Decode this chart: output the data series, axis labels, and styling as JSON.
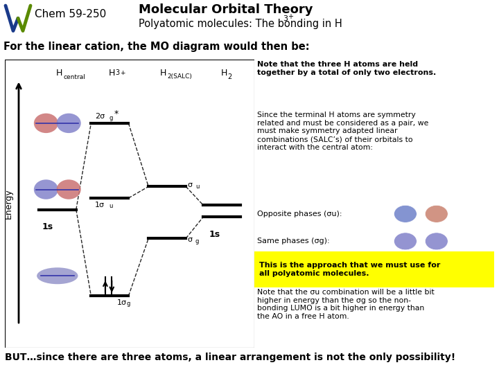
{
  "header_chem": "Chem 59-250",
  "title_line1": "Molecular Orbital Theory",
  "title_subtitle": "Polyatomic molecules: The bonding in H",
  "subtitle": "For the linear cation, the MO diagram would then be:",
  "note_bold": "Note that the three H atoms are held\ntogether by a total of only two electrons.",
  "note_regular": "Since the terminal H atoms are symmetry\nrelated and must be considered as a pair, we\nmust make symmetry adapted linear\ncombinations (SALC’s) of their orbitals to\ninteract with the central atom:",
  "opposite_phases_label": "Opposite phases (σu):",
  "same_phases_label": "Same phases (σg):",
  "yellow_box_text": "This is the approach that we must use for\nall polyatomic molecules.",
  "note_bottom": "Note that the σu combination will be a little bit\nhigher in energy than the σg so the non-\nbonding LUMO is a bit higher in energy than\nthe AO in a free H atom.",
  "bottom_text": "BUT…since there are three atoms, a linear arrangement is not the only possibility!",
  "bg_color": "#ffffff",
  "logo_blue": "#1a3a8a",
  "logo_green": "#5a8a00"
}
